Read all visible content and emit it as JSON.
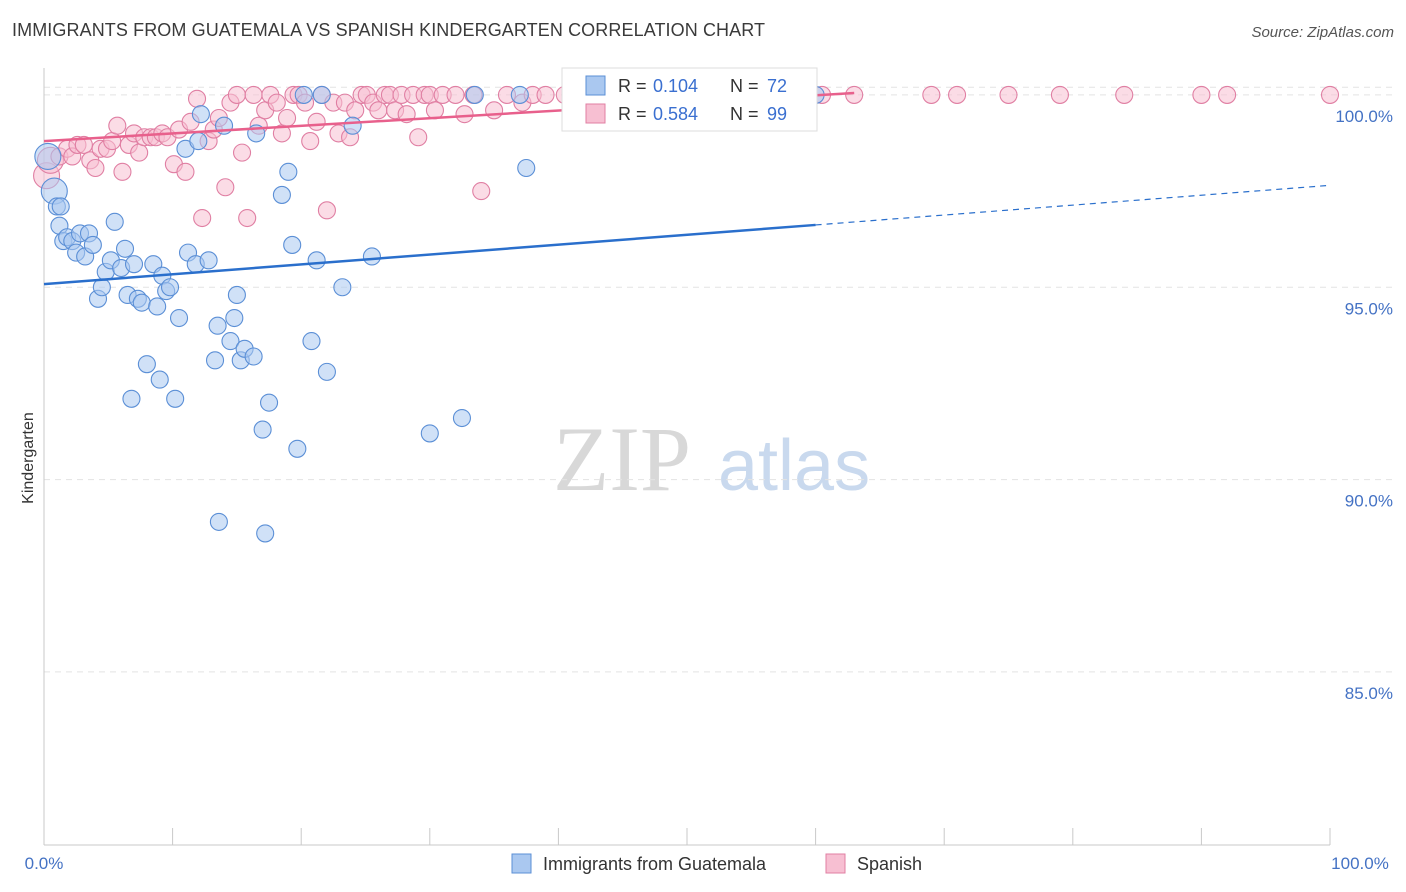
{
  "title": "IMMIGRANTS FROM GUATEMALA VS SPANISH KINDERGARTEN CORRELATION CHART",
  "source": "Source: ZipAtlas.com",
  "watermark": {
    "zip": "ZIP",
    "atlas": "atlas"
  },
  "colors": {
    "blue_fill": "#aac8f0",
    "blue_stroke": "#5b8fd6",
    "blue_line": "#2a6fcc",
    "pink_fill": "#f7bfd2",
    "pink_stroke": "#e07fa3",
    "pink_line": "#e8608c",
    "grid": "#e3e3e3",
    "axis_text": "#4472c4"
  },
  "legend_box": {
    "rows": [
      {
        "r_label": "R =",
        "r_value": "0.104",
        "n_label": "N =",
        "n_value": "72"
      },
      {
        "r_label": "R =",
        "r_value": "0.584",
        "n_label": "N =",
        "n_value": "99"
      }
    ]
  },
  "bottom_legend": [
    "Immigrants from Guatemala",
    "Spanish"
  ],
  "chart_data": {
    "type": "scatter",
    "title": "IMMIGRANTS FROM GUATEMALA VS SPANISH KINDERGARTEN CORRELATION CHART",
    "xlabel": "",
    "ylabel": "Kindergarten",
    "xlim": [
      0,
      100
    ],
    "ylim": [
      80.5,
      100.7
    ],
    "x_tick_labels": [
      "0.0%",
      "100.0%"
    ],
    "y_ticks": [
      {
        "value": 100,
        "label": "100.0%"
      },
      {
        "value": 95,
        "label": "95.0%"
      },
      {
        "value": 90,
        "label": "90.0%"
      },
      {
        "value": 85,
        "label": "85.0%"
      }
    ],
    "series": [
      {
        "name": "Immigrants from Guatemala",
        "R": 0.104,
        "N": 72,
        "trend": {
          "x0": 0,
          "y0": 95.08,
          "x1": 60,
          "y1": 96.62,
          "dash_to_x": 100,
          "dash_to_y": 97.65
        },
        "points": [
          [
            0.3,
            98.4
          ],
          [
            0.8,
            97.5
          ],
          [
            1.0,
            97.1
          ],
          [
            1.2,
            96.6
          ],
          [
            1.5,
            96.2
          ],
          [
            1.8,
            96.3
          ],
          [
            2.2,
            96.2
          ],
          [
            2.5,
            95.9
          ],
          [
            2.8,
            96.4
          ],
          [
            3.2,
            95.8
          ],
          [
            3.5,
            96.4
          ],
          [
            3.8,
            96.1
          ],
          [
            4.2,
            94.7
          ],
          [
            4.5,
            95.0
          ],
          [
            4.8,
            95.4
          ],
          [
            5.2,
            95.7
          ],
          [
            5.5,
            96.7
          ],
          [
            6.0,
            95.5
          ],
          [
            6.3,
            96.0
          ],
          [
            6.5,
            94.8
          ],
          [
            7.0,
            95.6
          ],
          [
            7.3,
            94.7
          ],
          [
            7.6,
            94.6
          ],
          [
            8.0,
            93.0
          ],
          [
            8.5,
            95.6
          ],
          [
            8.8,
            94.5
          ],
          [
            9.2,
            95.3
          ],
          [
            9.5,
            94.9
          ],
          [
            9.8,
            95.0
          ],
          [
            10.2,
            92.1
          ],
          [
            10.5,
            94.2
          ],
          [
            11.0,
            98.6
          ],
          [
            11.2,
            95.9
          ],
          [
            11.8,
            95.6
          ],
          [
            12.0,
            98.8
          ],
          [
            12.2,
            99.5
          ],
          [
            12.8,
            95.7
          ],
          [
            13.3,
            93.1
          ],
          [
            13.5,
            94.0
          ],
          [
            14.0,
            99.2
          ],
          [
            14.5,
            93.6
          ],
          [
            14.8,
            94.2
          ],
          [
            15.0,
            94.8
          ],
          [
            15.3,
            93.1
          ],
          [
            15.6,
            93.4
          ],
          [
            16.3,
            93.2
          ],
          [
            16.5,
            99.0
          ],
          [
            17.0,
            91.3
          ],
          [
            17.5,
            92.0
          ],
          [
            18.5,
            97.4
          ],
          [
            19.0,
            98.0
          ],
          [
            19.3,
            96.1
          ],
          [
            19.7,
            90.8
          ],
          [
            20.2,
            100.0
          ],
          [
            20.8,
            93.6
          ],
          [
            21.2,
            95.7
          ],
          [
            21.6,
            100.0
          ],
          [
            22.0,
            92.8
          ],
          [
            23.2,
            95.0
          ],
          [
            24.0,
            99.2
          ],
          [
            25.5,
            95.8
          ],
          [
            30.0,
            91.2
          ],
          [
            32.5,
            91.6
          ],
          [
            33.5,
            100.0
          ],
          [
            37.0,
            100.0
          ],
          [
            37.5,
            98.1
          ],
          [
            60.0,
            100.0
          ],
          [
            1.3,
            97.1
          ],
          [
            6.8,
            92.1
          ],
          [
            9.0,
            92.6
          ],
          [
            13.6,
            88.9
          ],
          [
            17.2,
            88.6
          ]
        ]
      },
      {
        "name": "Spanish",
        "R": 0.584,
        "N": 99,
        "trend": {
          "x0": 0,
          "y0": 98.8,
          "x1": 63,
          "y1": 100.05
        },
        "points": [
          [
            0.2,
            97.9
          ],
          [
            0.5,
            98.3
          ],
          [
            1.2,
            98.4
          ],
          [
            1.8,
            98.6
          ],
          [
            2.2,
            98.4
          ],
          [
            2.6,
            98.7
          ],
          [
            3.1,
            98.7
          ],
          [
            3.6,
            98.3
          ],
          [
            4.0,
            98.1
          ],
          [
            4.4,
            98.6
          ],
          [
            4.9,
            98.6
          ],
          [
            5.3,
            98.8
          ],
          [
            5.7,
            99.2
          ],
          [
            6.1,
            98.0
          ],
          [
            6.6,
            98.7
          ],
          [
            7.0,
            99.0
          ],
          [
            7.4,
            98.5
          ],
          [
            7.8,
            98.9
          ],
          [
            8.3,
            98.9
          ],
          [
            8.7,
            98.9
          ],
          [
            9.2,
            99.0
          ],
          [
            9.6,
            98.9
          ],
          [
            10.1,
            98.2
          ],
          [
            10.5,
            99.1
          ],
          [
            11.0,
            98.0
          ],
          [
            11.4,
            99.3
          ],
          [
            11.9,
            99.9
          ],
          [
            12.3,
            96.8
          ],
          [
            12.8,
            98.8
          ],
          [
            13.2,
            99.1
          ],
          [
            13.6,
            99.4
          ],
          [
            14.1,
            97.6
          ],
          [
            14.5,
            99.8
          ],
          [
            15.0,
            100.0
          ],
          [
            15.4,
            98.5
          ],
          [
            15.8,
            96.8
          ],
          [
            16.3,
            100.0
          ],
          [
            16.7,
            99.2
          ],
          [
            17.2,
            99.6
          ],
          [
            17.6,
            100.0
          ],
          [
            18.1,
            99.8
          ],
          [
            18.5,
            99.0
          ],
          [
            18.9,
            99.4
          ],
          [
            19.4,
            100.0
          ],
          [
            19.8,
            100.0
          ],
          [
            20.3,
            99.8
          ],
          [
            20.7,
            98.8
          ],
          [
            21.2,
            99.3
          ],
          [
            21.6,
            100.0
          ],
          [
            22.0,
            97.0
          ],
          [
            22.5,
            99.8
          ],
          [
            22.9,
            99.0
          ],
          [
            23.4,
            99.8
          ],
          [
            23.8,
            98.9
          ],
          [
            24.2,
            99.6
          ],
          [
            24.7,
            100.0
          ],
          [
            25.1,
            100.0
          ],
          [
            25.6,
            99.8
          ],
          [
            26.0,
            99.6
          ],
          [
            26.5,
            100.0
          ],
          [
            26.9,
            100.0
          ],
          [
            27.3,
            99.6
          ],
          [
            27.8,
            100.0
          ],
          [
            28.2,
            99.5
          ],
          [
            28.7,
            100.0
          ],
          [
            29.1,
            98.9
          ],
          [
            29.6,
            100.0
          ],
          [
            30.0,
            100.0
          ],
          [
            30.4,
            99.6
          ],
          [
            31.0,
            100.0
          ],
          [
            32.0,
            100.0
          ],
          [
            32.7,
            99.5
          ],
          [
            33.4,
            100.0
          ],
          [
            34.0,
            97.5
          ],
          [
            35.0,
            99.6
          ],
          [
            36.0,
            100.0
          ],
          [
            37.2,
            99.8
          ],
          [
            38.0,
            100.0
          ],
          [
            39.0,
            100.0
          ],
          [
            40.5,
            100.0
          ],
          [
            42.0,
            100.0
          ],
          [
            43.5,
            100.0
          ],
          [
            45.0,
            100.0
          ],
          [
            47.0,
            100.0
          ],
          [
            49.0,
            100.0
          ],
          [
            51.0,
            100.0
          ],
          [
            53.0,
            100.0
          ],
          [
            55.0,
            100.0
          ],
          [
            58.0,
            100.0
          ],
          [
            60.5,
            100.0
          ],
          [
            63.0,
            100.0
          ],
          [
            69.0,
            100.0
          ],
          [
            71.0,
            100.0
          ],
          [
            75.0,
            100.0
          ],
          [
            79.0,
            100.0
          ],
          [
            84.0,
            100.0
          ],
          [
            90.0,
            100.0
          ],
          [
            92.0,
            100.0
          ],
          [
            100.0,
            100.0
          ]
        ]
      }
    ]
  }
}
